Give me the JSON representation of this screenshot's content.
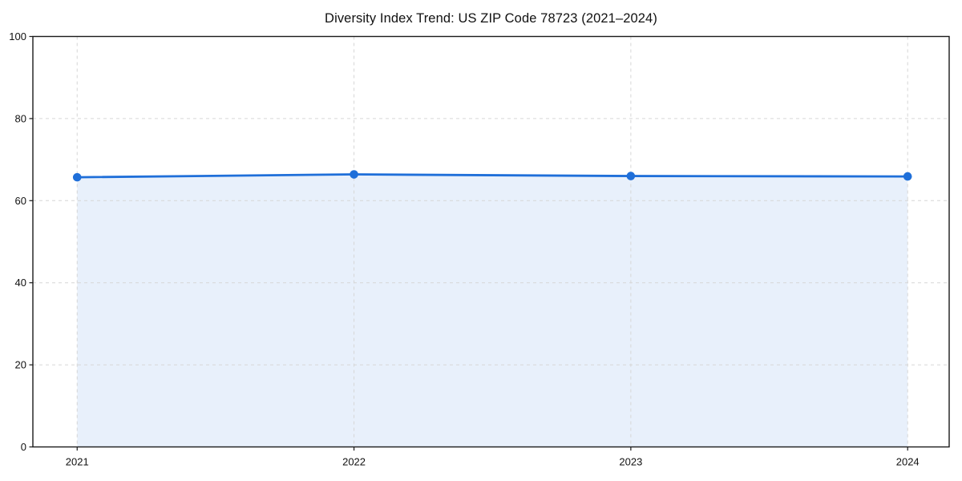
{
  "chart_data": {
    "type": "line",
    "title": "Diversity Index Trend: US ZIP Code 78723 (2021–2024)",
    "x": [
      2021,
      2022,
      2023,
      2024
    ],
    "series": [
      {
        "name": "Diversity Index",
        "values": [
          65.7,
          66.4,
          66.0,
          65.9
        ]
      }
    ],
    "xlabel": "",
    "ylabel": "",
    "xlim": [
      2020.84,
      2024.15
    ],
    "ylim": [
      0,
      100
    ],
    "xticks": [
      "2021",
      "2022",
      "2023",
      "2024"
    ],
    "xtick_positions": [
      2021,
      2022,
      2023,
      2024
    ],
    "yticks": [
      0,
      20,
      40,
      60,
      80,
      100
    ],
    "grid": "dashed horizontal and vertical gridlines at ticks",
    "legend": "none",
    "area_fill_to_zero": true,
    "marker_style": "filled-circle",
    "colors": {
      "line": "#1f6fd9",
      "marker": "#1f6fd9",
      "area": "#e8f0fb",
      "grid": "#d6d6d6",
      "axis": "#1a1a1a",
      "tick_text": "#111111",
      "title_text": "#111111",
      "background": "#ffffff"
    }
  }
}
